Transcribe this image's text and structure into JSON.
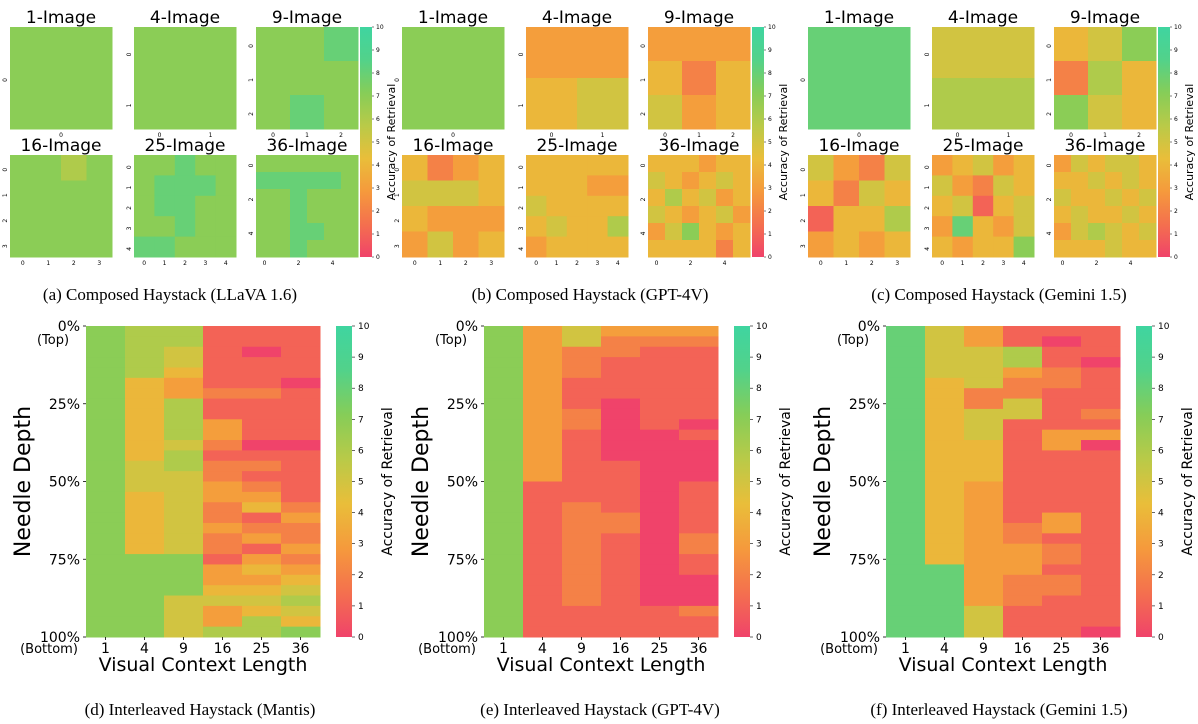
{
  "colorbar": {
    "label": "Accuracy of Retrieval",
    "ticks": [
      "0",
      "1",
      "2",
      "3",
      "4",
      "5",
      "6",
      "7",
      "8",
      "9",
      "10"
    ],
    "min": 0,
    "max": 10,
    "colors": [
      "#f0436a",
      "#f4704e",
      "#f59a3c",
      "#e9be3a",
      "#b9ca48",
      "#86cd58",
      "#52d28a",
      "#3fd5a0"
    ]
  },
  "captions": {
    "a": "(a) Composed Haystack (LLaVA 1.6)",
    "b": "(b) Composed Haystack (GPT-4V)",
    "c": "(c) Composed Haystack (Gemini 1.5)",
    "d": "(d) Interleaved Haystack (Mantis)",
    "e": "(e) Interleaved Haystack (GPT-4V)",
    "f": "(f) Interleaved Haystack (Gemini 1.5)"
  },
  "interleaved_axes": {
    "ylabel": "Needle Depth",
    "xlabel": "Visual Context Length",
    "x_ticks": [
      "1",
      "4",
      "9",
      "16",
      "25",
      "36"
    ],
    "y_ticks": [
      "0%",
      "25%",
      "50%",
      "75%",
      "100%"
    ],
    "y_tick_sub_top": "(Top)",
    "y_tick_sub_bottom": "(Bottom)"
  },
  "chart_data": [
    {
      "type": "heatmap",
      "panel": "a",
      "grids": [
        {
          "title": "1-Image",
          "values": [
            [
              7
            ]
          ]
        },
        {
          "title": "4-Image",
          "values": [
            [
              7,
              7
            ],
            [
              7,
              7
            ]
          ]
        },
        {
          "title": "9-Image",
          "values": [
            [
              7,
              7,
              8
            ],
            [
              7,
              7,
              7
            ],
            [
              7,
              8,
              7
            ]
          ]
        },
        {
          "title": "16-Image",
          "values": [
            [
              7,
              7,
              6,
              7
            ],
            [
              7,
              7,
              7,
              7
            ],
            [
              7,
              7,
              7,
              7
            ],
            [
              7,
              7,
              7,
              7
            ]
          ]
        },
        {
          "title": "25-Image",
          "values": [
            [
              7,
              7,
              8,
              7,
              7
            ],
            [
              7,
              8,
              8,
              8,
              7
            ],
            [
              7,
              8,
              8,
              7,
              7
            ],
            [
              7,
              7,
              8,
              7,
              7
            ],
            [
              8,
              8,
              7,
              7,
              7
            ]
          ]
        },
        {
          "title": "36-Image",
          "values": [
            [
              7,
              7,
              7,
              7,
              7,
              7
            ],
            [
              8,
              8,
              8,
              8,
              8,
              7
            ],
            [
              7,
              7,
              8,
              7,
              7,
              7
            ],
            [
              7,
              7,
              8,
              7,
              7,
              7
            ],
            [
              7,
              7,
              8,
              8,
              7,
              7
            ],
            [
              7,
              7,
              8,
              7,
              7,
              7
            ]
          ]
        }
      ]
    },
    {
      "type": "heatmap",
      "panel": "b",
      "grids": [
        {
          "title": "1-Image",
          "values": [
            [
              7
            ]
          ]
        },
        {
          "title": "4-Image",
          "values": [
            [
              3,
              3
            ],
            [
              4,
              5
            ]
          ]
        },
        {
          "title": "9-Image",
          "values": [
            [
              3,
              3,
              3
            ],
            [
              4,
              2,
              4
            ],
            [
              5,
              3,
              4
            ]
          ]
        },
        {
          "title": "16-Image",
          "values": [
            [
              4,
              2,
              3,
              4
            ],
            [
              5,
              5,
              5,
              4
            ],
            [
              4,
              3,
              3,
              3
            ],
            [
              3,
              5,
              3,
              4
            ]
          ]
        },
        {
          "title": "25-Image",
          "values": [
            [
              4,
              4,
              4,
              4,
              4
            ],
            [
              4,
              4,
              4,
              3,
              3
            ],
            [
              5,
              4,
              4,
              4,
              4
            ],
            [
              4,
              5,
              4,
              4,
              6
            ],
            [
              3,
              4,
              4,
              4,
              4
            ]
          ]
        },
        {
          "title": "36-Image",
          "values": [
            [
              4,
              4,
              4,
              3,
              4,
              4
            ],
            [
              5,
              4,
              3,
              4,
              5,
              4
            ],
            [
              4,
              6,
              4,
              5,
              3,
              4
            ],
            [
              5,
              4,
              3,
              4,
              5,
              3
            ],
            [
              3,
              5,
              7,
              4,
              3,
              4
            ],
            [
              4,
              4,
              4,
              4,
              2,
              4
            ]
          ]
        }
      ]
    },
    {
      "type": "heatmap",
      "panel": "c",
      "grids": [
        {
          "title": "1-Image",
          "values": [
            [
              8
            ]
          ]
        },
        {
          "title": "4-Image",
          "values": [
            [
              5,
              5
            ],
            [
              6,
              6
            ]
          ]
        },
        {
          "title": "9-Image",
          "values": [
            [
              4,
              5,
              7
            ],
            [
              2,
              6,
              4
            ],
            [
              7,
              5,
              4
            ]
          ]
        },
        {
          "title": "16-Image",
          "values": [
            [
              5,
              3,
              2,
              5
            ],
            [
              4,
              2,
              5,
              4
            ],
            [
              1,
              4,
              4,
              6
            ],
            [
              3,
              4,
              3,
              4
            ]
          ]
        },
        {
          "title": "25-Image",
          "values": [
            [
              3,
              4,
              5,
              3,
              4
            ],
            [
              5,
              3,
              2,
              5,
              4
            ],
            [
              4,
              5,
              1,
              4,
              5
            ],
            [
              3,
              8,
              4,
              3,
              5
            ],
            [
              4,
              3,
              4,
              4,
              7
            ]
          ]
        },
        {
          "title": "36-Image",
          "values": [
            [
              3,
              5,
              4,
              5,
              5,
              4
            ],
            [
              4,
              4,
              5,
              4,
              5,
              4
            ],
            [
              5,
              4,
              4,
              5,
              4,
              5
            ],
            [
              4,
              5,
              4,
              4,
              5,
              4
            ],
            [
              3,
              5,
              6,
              5,
              4,
              5
            ],
            [
              4,
              4,
              4,
              5,
              4,
              4
            ]
          ]
        }
      ]
    },
    {
      "type": "heatmap",
      "panel": "d",
      "x": [
        "1",
        "4",
        "9",
        "16",
        "25",
        "36"
      ],
      "columns": [
        [
          7,
          7,
          7,
          7,
          7,
          7,
          7,
          7,
          7,
          7,
          7,
          7,
          7,
          7,
          7,
          7,
          7,
          7,
          7,
          7,
          7,
          7,
          7,
          7,
          7,
          7,
          7,
          7,
          7,
          7
        ],
        [
          6,
          6,
          6,
          6,
          6,
          4,
          4,
          4,
          4,
          4,
          4,
          4,
          4,
          5,
          5,
          5,
          4,
          4,
          4,
          4,
          4,
          4,
          7,
          7,
          7,
          7,
          7,
          7,
          7,
          7
        ],
        [
          6,
          6,
          5,
          5,
          4,
          3,
          3,
          6,
          6,
          6,
          6,
          5,
          6,
          6,
          5,
          5,
          5,
          5,
          5,
          5,
          5,
          5,
          7,
          7,
          7,
          7,
          5,
          5,
          5,
          5
        ],
        [
          1,
          1,
          1,
          1,
          1,
          1,
          2,
          1,
          1,
          3,
          3,
          2,
          1,
          2,
          2,
          3,
          3,
          2,
          2,
          3,
          2,
          2,
          1,
          3,
          3,
          4,
          5,
          3,
          3,
          6
        ],
        [
          1,
          1,
          0,
          1,
          1,
          1,
          2,
          1,
          1,
          1,
          1,
          0,
          1,
          2,
          1,
          2,
          3,
          4,
          1,
          2,
          3,
          1,
          3,
          4,
          3,
          4,
          5,
          4,
          6,
          6
        ],
        [
          1,
          1,
          1,
          1,
          1,
          0,
          1,
          1,
          1,
          1,
          1,
          0,
          1,
          1,
          1,
          1,
          1,
          2,
          3,
          2,
          2,
          3,
          2,
          3,
          4,
          5,
          6,
          5,
          4,
          7
        ]
      ]
    },
    {
      "type": "heatmap",
      "panel": "e",
      "x": [
        "1",
        "4",
        "9",
        "16",
        "25",
        "36"
      ],
      "columns": [
        [
          7,
          7,
          7,
          7,
          7,
          7,
          7,
          7,
          7,
          7,
          7,
          7,
          7,
          7,
          7,
          7,
          7,
          7,
          7,
          7,
          7,
          7,
          7,
          7,
          7,
          7,
          7,
          7,
          7,
          7
        ],
        [
          3,
          3,
          3,
          3,
          3,
          3,
          3,
          3,
          3,
          3,
          3,
          3,
          3,
          3,
          3,
          1,
          1,
          1,
          1,
          1,
          1,
          1,
          1,
          1,
          1,
          1,
          1,
          1,
          1,
          1
        ],
        [
          5,
          5,
          2,
          2,
          2,
          1,
          1,
          1,
          2,
          2,
          1,
          1,
          1,
          1,
          1,
          1,
          1,
          2,
          2,
          2,
          2,
          2,
          2,
          2,
          2,
          2,
          2,
          1,
          1,
          1
        ],
        [
          3,
          2,
          2,
          1,
          1,
          1,
          1,
          0,
          0,
          0,
          0,
          0,
          0,
          1,
          1,
          1,
          1,
          1,
          2,
          2,
          1,
          1,
          1,
          1,
          1,
          1,
          1,
          1,
          1,
          1
        ],
        [
          3,
          2,
          1,
          1,
          1,
          1,
          1,
          1,
          1,
          1,
          0,
          0,
          0,
          0,
          0,
          0,
          0,
          0,
          0,
          0,
          0,
          0,
          0,
          0,
          0,
          0,
          0,
          1,
          1,
          1
        ],
        [
          3,
          2,
          1,
          1,
          1,
          1,
          1,
          1,
          1,
          0,
          1,
          0,
          0,
          0,
          0,
          1,
          1,
          1,
          1,
          1,
          2,
          2,
          1,
          1,
          0,
          0,
          0,
          2,
          1,
          1
        ]
      ]
    },
    {
      "type": "heatmap",
      "panel": "f",
      "x": [
        "1",
        "4",
        "9",
        "16",
        "25",
        "36"
      ],
      "columns": [
        [
          8,
          8,
          8,
          8,
          8,
          8,
          8,
          8,
          8,
          8,
          8,
          8,
          8,
          8,
          8,
          8,
          8,
          8,
          8,
          8,
          8,
          8,
          8,
          8,
          8,
          8,
          8,
          8,
          8,
          8
        ],
        [
          5,
          5,
          5,
          5,
          5,
          4,
          4,
          4,
          4,
          4,
          4,
          4,
          4,
          4,
          4,
          4,
          4,
          4,
          4,
          4,
          4,
          4,
          4,
          8,
          8,
          8,
          8,
          8,
          8,
          8
        ],
        [
          3,
          3,
          5,
          5,
          5,
          5,
          2,
          2,
          5,
          5,
          5,
          4,
          4,
          4,
          4,
          3,
          3,
          3,
          3,
          3,
          3,
          3,
          3,
          3,
          3,
          3,
          3,
          5,
          5,
          5
        ],
        [
          1,
          1,
          6,
          6,
          3,
          2,
          2,
          5,
          5,
          1,
          1,
          1,
          1,
          1,
          1,
          1,
          1,
          1,
          1,
          2,
          2,
          3,
          3,
          3,
          2,
          2,
          2,
          1,
          1,
          1
        ],
        [
          1,
          0,
          1,
          1,
          2,
          2,
          1,
          1,
          1,
          1,
          3,
          3,
          1,
          1,
          1,
          1,
          1,
          1,
          3,
          3,
          1,
          2,
          2,
          1,
          2,
          2,
          1,
          1,
          1,
          1
        ],
        [
          1,
          1,
          1,
          0,
          1,
          1,
          1,
          1,
          2,
          1,
          3,
          0,
          1,
          1,
          1,
          1,
          1,
          1,
          1,
          1,
          1,
          1,
          1,
          1,
          1,
          1,
          1,
          1,
          1,
          0
        ]
      ]
    }
  ]
}
